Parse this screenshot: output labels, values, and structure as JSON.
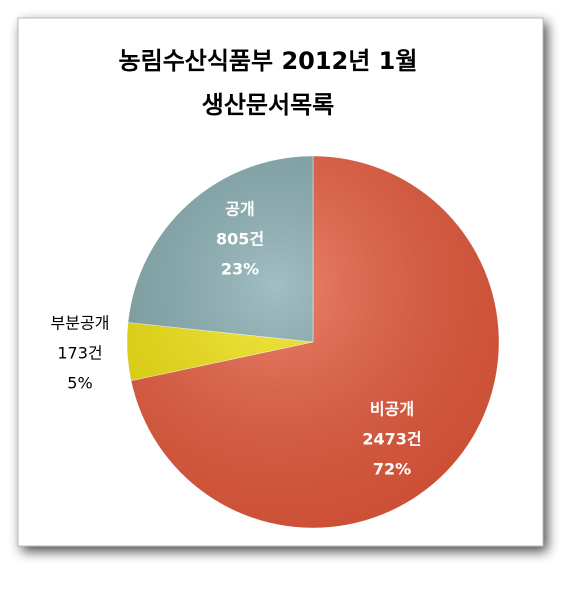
{
  "chart_data": {
    "type": "pie",
    "title": [
      "농림수산식품부 2012년 1월",
      "생산문서목록"
    ],
    "categories": [
      "비공개",
      "부분공개",
      "공개"
    ],
    "values": [
      2473,
      173,
      805
    ],
    "value_labels": [
      "2473건",
      "173건",
      "805건"
    ],
    "percentages": [
      72,
      5,
      23
    ],
    "percentage_labels": [
      "72%",
      "5%",
      "23%"
    ],
    "colors": [
      "#e85a3c",
      "#f2e40a",
      "#82a9ae"
    ]
  }
}
